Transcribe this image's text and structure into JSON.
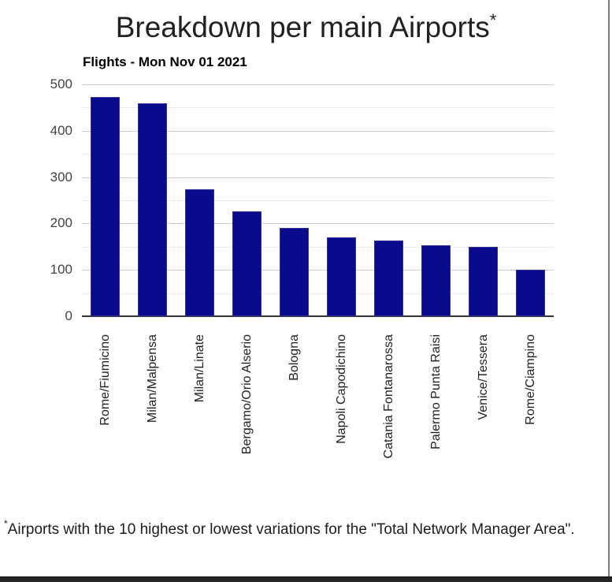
{
  "page": {
    "title_superscript": "*",
    "footnote_superscript": "*",
    "footnote_text": "Airports with the 10 highest or lowest variations for the \"Total Network Manager Area\".",
    "colors": {
      "bar": "#0a0a8c",
      "grid_major": "#cccccc",
      "grid_minor": "#ebebeb",
      "axis_line": "#333333"
    }
  },
  "chart_data": {
    "type": "bar",
    "title": "Breakdown per main Airports",
    "subtitle": "Flights - Mon Nov 01 2021",
    "categories": [
      "Rome/Fiumicino",
      "Milan/Malpensa",
      "Milan/Linate",
      "Bergamo/Orio Alserio",
      "Bologna",
      "Napoli Capodichino",
      "Catania Fontanarossa",
      "Palermo Punta Raisi",
      "Venice/Tessera",
      "Rome/Ciampino"
    ],
    "values": [
      472,
      459,
      274,
      227,
      191,
      170,
      163,
      153,
      150,
      101
    ],
    "xlabel": "",
    "ylabel": "",
    "ylim": [
      0,
      500
    ],
    "y_major_ticks": [
      0,
      100,
      200,
      300,
      400,
      500
    ],
    "y_minor_ticks": [
      50,
      150,
      250,
      350,
      450
    ],
    "grid": true,
    "legend_position": "none",
    "bar_color": "#0a0a8c"
  }
}
